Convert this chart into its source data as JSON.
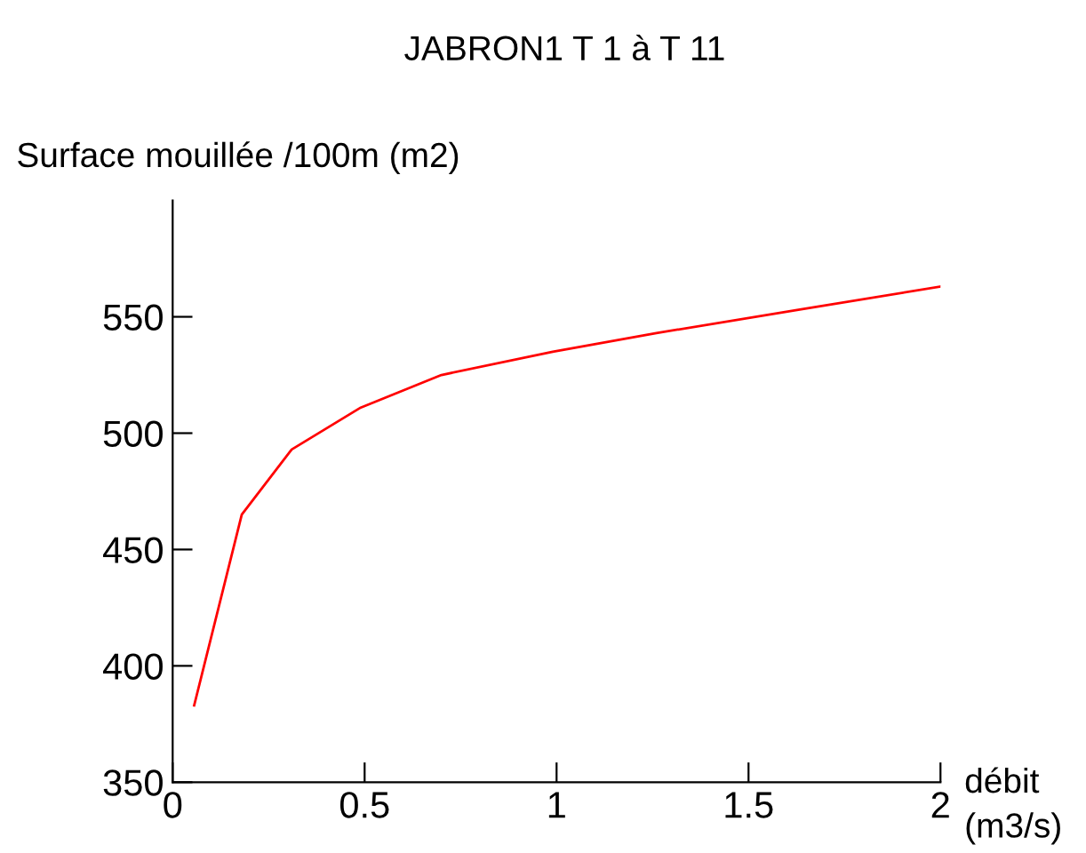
{
  "chart_data": {
    "type": "line",
    "title": "JABRON1 T 1 à T 11",
    "xlabel": "débit\n(m3/s)",
    "ylabel": "Surface mouillée /100m (m2)",
    "x": [
      0.056,
      0.18,
      0.31,
      0.49,
      0.7,
      0.99,
      1.26,
      1.63,
      2.0
    ],
    "series": [
      {
        "color": "#ff0000",
        "values": [
          383,
          465,
          493,
          511,
          525,
          535,
          543,
          553,
          563
        ]
      }
    ],
    "xlim": [
      0,
      2
    ],
    "ylim": [
      350,
      600
    ],
    "xticks": [
      0,
      0.5,
      1,
      1.5,
      2
    ],
    "yticks": [
      350,
      400,
      450,
      500,
      550
    ],
    "grid": false,
    "legend": false,
    "marker": "none",
    "line_style": "solid"
  }
}
